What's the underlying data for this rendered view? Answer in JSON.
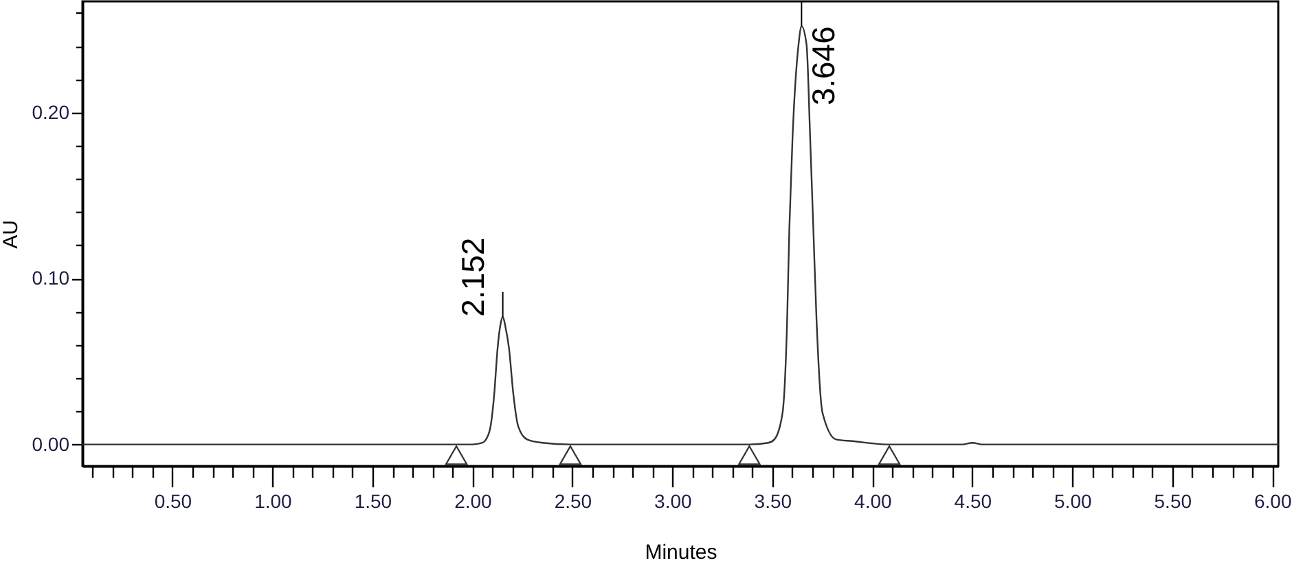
{
  "chart_data": {
    "type": "line",
    "xlabel": "Minutes",
    "ylabel": "AU",
    "xlim": [
      0.05,
      6.03
    ],
    "ylim": [
      -0.013,
      0.267
    ],
    "xticks": [
      {
        "value": 0.1,
        "label": null
      },
      {
        "value": 0.2,
        "label": null
      },
      {
        "value": 0.3,
        "label": null
      },
      {
        "value": 0.4,
        "label": null
      },
      {
        "value": 0.5,
        "label": "0.50"
      },
      {
        "value": 0.6,
        "label": null
      },
      {
        "value": 0.7,
        "label": null
      },
      {
        "value": 0.8,
        "label": null
      },
      {
        "value": 0.9,
        "label": null
      },
      {
        "value": 1.0,
        "label": "1.00"
      },
      {
        "value": 1.1,
        "label": null
      },
      {
        "value": 1.2,
        "label": null
      },
      {
        "value": 1.3,
        "label": null
      },
      {
        "value": 1.4,
        "label": null
      },
      {
        "value": 1.5,
        "label": "1.50"
      },
      {
        "value": 1.6,
        "label": null
      },
      {
        "value": 1.7,
        "label": null
      },
      {
        "value": 1.8,
        "label": null
      },
      {
        "value": 1.9,
        "label": null
      },
      {
        "value": 2.0,
        "label": "2.00"
      },
      {
        "value": 2.1,
        "label": null
      },
      {
        "value": 2.2,
        "label": null
      },
      {
        "value": 2.3,
        "label": null
      },
      {
        "value": 2.4,
        "label": null
      },
      {
        "value": 2.5,
        "label": "2.50"
      },
      {
        "value": 2.6,
        "label": null
      },
      {
        "value": 2.7,
        "label": null
      },
      {
        "value": 2.8,
        "label": null
      },
      {
        "value": 2.9,
        "label": null
      },
      {
        "value": 3.0,
        "label": "3.00"
      },
      {
        "value": 3.1,
        "label": null
      },
      {
        "value": 3.2,
        "label": null
      },
      {
        "value": 3.3,
        "label": null
      },
      {
        "value": 3.4,
        "label": null
      },
      {
        "value": 3.5,
        "label": "3.50"
      },
      {
        "value": 3.6,
        "label": null
      },
      {
        "value": 3.7,
        "label": null
      },
      {
        "value": 3.8,
        "label": null
      },
      {
        "value": 3.9,
        "label": null
      },
      {
        "value": 4.0,
        "label": "4.00"
      },
      {
        "value": 4.1,
        "label": null
      },
      {
        "value": 4.2,
        "label": null
      },
      {
        "value": 4.3,
        "label": null
      },
      {
        "value": 4.4,
        "label": null
      },
      {
        "value": 4.5,
        "label": "4.50"
      },
      {
        "value": 4.6,
        "label": null
      },
      {
        "value": 4.7,
        "label": null
      },
      {
        "value": 4.8,
        "label": null
      },
      {
        "value": 4.9,
        "label": null
      },
      {
        "value": 5.0,
        "label": "5.00"
      },
      {
        "value": 5.1,
        "label": null
      },
      {
        "value": 5.2,
        "label": null
      },
      {
        "value": 5.3,
        "label": null
      },
      {
        "value": 5.4,
        "label": null
      },
      {
        "value": 5.5,
        "label": "5.50"
      },
      {
        "value": 5.6,
        "label": null
      },
      {
        "value": 5.7,
        "label": null
      },
      {
        "value": 5.8,
        "label": null
      },
      {
        "value": 5.9,
        "label": null
      },
      {
        "value": 6.0,
        "label": "6.00"
      }
    ],
    "yticks": [
      {
        "value": 0,
        "label": "0.00"
      },
      {
        "value": 0.02,
        "label": null
      },
      {
        "value": 0.04,
        "label": null
      },
      {
        "value": 0.06,
        "label": null
      },
      {
        "value": 0.08,
        "label": null
      },
      {
        "value": 0.1,
        "label": "0.10"
      },
      {
        "value": 0.12,
        "label": null
      },
      {
        "value": 0.14,
        "label": null
      },
      {
        "value": 0.16,
        "label": null
      },
      {
        "value": 0.18,
        "label": null
      },
      {
        "value": 0.2,
        "label": "0.20"
      },
      {
        "value": 0.22,
        "label": null
      },
      {
        "value": 0.24,
        "label": null
      },
      {
        "value": 0.26,
        "label": null
      }
    ],
    "grid": false,
    "series": [
      {
        "color": "#333333",
        "x": [
          0.05,
          0.5,
          1.0,
          1.5,
          1.92,
          2.0,
          2.05,
          2.068,
          2.091,
          2.109,
          2.126,
          2.14,
          2.152,
          2.165,
          2.183,
          2.205,
          2.229,
          2.274,
          2.35,
          2.49,
          3.0,
          3.385,
          3.48,
          3.51,
          3.551,
          3.574,
          3.585,
          3.601,
          3.631,
          3.646,
          3.671,
          3.689,
          3.705,
          3.721,
          3.751,
          3.819,
          3.9,
          4.085,
          4.45,
          4.5,
          4.55,
          5.0,
          5.5,
          6.03
        ],
        "values": [
          0,
          0,
          0,
          0,
          0,
          0,
          0.001,
          0.003,
          0.011,
          0.03,
          0.058,
          0.072,
          0.077,
          0.071,
          0.058,
          0.03,
          0.011,
          0.003,
          0.001,
          0,
          0,
          0,
          0.001,
          0.003,
          0.019,
          0.075,
          0.13,
          0.185,
          0.241,
          0.252,
          0.241,
          0.185,
          0.13,
          0.075,
          0.019,
          0.003,
          0.002,
          0,
          0,
          0.001,
          0,
          0,
          0,
          0
        ]
      },
      {
        "type": "scatter",
        "marker": "triangle",
        "color": "#333333",
        "x": [
          1.92,
          2.49,
          3.385,
          4.085
        ],
        "values": [
          -0.0065,
          -0.0065,
          -0.0065,
          -0.0065
        ]
      }
    ],
    "annotations": [
      {
        "text": "2.152",
        "x": 2.152,
        "y": 0.077
      },
      {
        "text": "3.646",
        "x": 3.646,
        "y": 0.252
      }
    ]
  }
}
